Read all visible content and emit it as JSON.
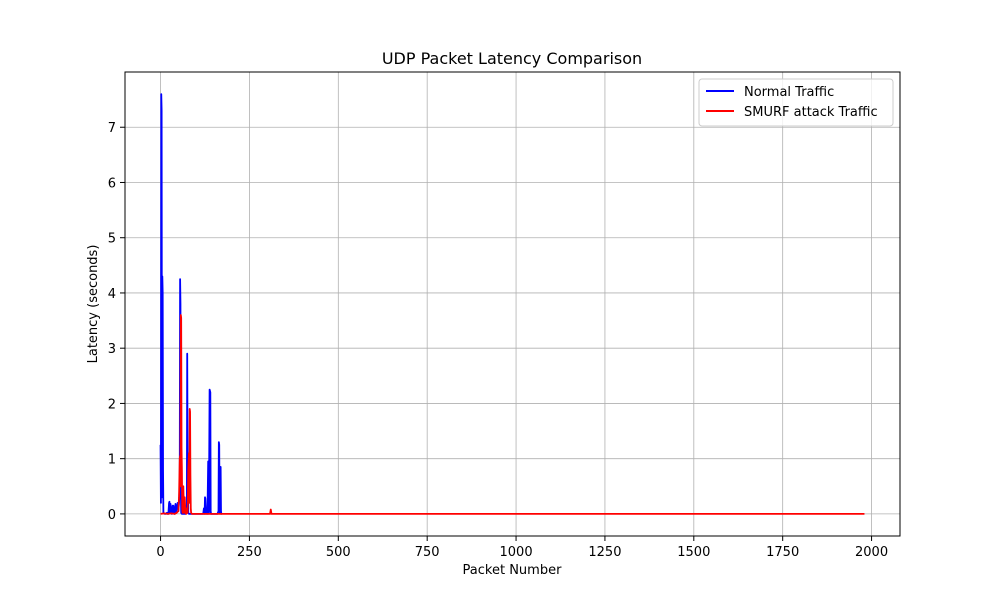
{
  "chart_data": {
    "type": "line",
    "title": "UDP Packet Latency Comparison",
    "xlabel": "Packet Number",
    "ylabel": "Latency (seconds)",
    "xlim": [
      -100,
      2080
    ],
    "ylim": [
      -0.4,
      8.0
    ],
    "xticks": [
      0,
      250,
      500,
      750,
      1000,
      1250,
      1500,
      1750,
      2000
    ],
    "yticks": [
      0,
      1,
      2,
      3,
      4,
      5,
      6,
      7
    ],
    "grid": true,
    "legend": "top-right",
    "series": [
      {
        "name": "Normal Traffic",
        "color": "#0000ff",
        "x": [
          0,
          1,
          2,
          3,
          4,
          5,
          6,
          7,
          8,
          9,
          10,
          12,
          15,
          18,
          20,
          22,
          24,
          25,
          26,
          27,
          28,
          30,
          32,
          34,
          35,
          36,
          38,
          40,
          42,
          44,
          45,
          46,
          48,
          50,
          52,
          54,
          55,
          56,
          57,
          58,
          60,
          62,
          65,
          70,
          74,
          75,
          76,
          78,
          80,
          85,
          90,
          100,
          110,
          120,
          122,
          124,
          125,
          126,
          128,
          130,
          132,
          134,
          135,
          136,
          138,
          140,
          141,
          142,
          143,
          144,
          146,
          150,
          155,
          160,
          163,
          164,
          165,
          166,
          167,
          168,
          169,
          170,
          171,
          172
        ],
        "y": [
          1.25,
          0.2,
          7.6,
          7.3,
          0.3,
          4.3,
          4.0,
          0.8,
          0.02,
          0.01,
          0.01,
          0.0,
          0.0,
          0.02,
          0.0,
          0.0,
          0.2,
          0.22,
          0.02,
          0.05,
          0.18,
          0.02,
          0.0,
          0.15,
          0.02,
          0.15,
          0.05,
          0.0,
          0.18,
          0.02,
          0.15,
          0.1,
          0.2,
          0.05,
          0.2,
          0.6,
          4.25,
          3.8,
          0.5,
          0.02,
          0.0,
          0.0,
          0.0,
          0.0,
          0.02,
          2.9,
          1.0,
          0.02,
          0.0,
          0.0,
          0.0,
          0.0,
          0.0,
          0.0,
          0.1,
          0.0,
          0.3,
          0.28,
          0.0,
          0.1,
          0.0,
          0.95,
          0.3,
          0.0,
          2.25,
          2.2,
          0.05,
          0.0,
          0.0,
          0.0,
          0.0,
          0.0,
          0.0,
          0.0,
          0.05,
          1.3,
          1.25,
          0.05,
          0.02,
          0.7,
          0.85,
          0.05,
          0.0,
          0.0
        ]
      },
      {
        "name": "SMURF attack Traffic",
        "color": "#ff0000",
        "x": [
          0,
          10,
          20,
          30,
          40,
          45,
          50,
          52,
          54,
          55,
          56,
          57,
          58,
          59,
          60,
          61,
          62,
          64,
          66,
          68,
          70,
          72,
          74,
          76,
          78,
          80,
          81,
          82,
          83,
          84,
          85,
          86,
          88,
          90,
          100,
          120,
          150,
          200,
          250,
          300,
          308,
          310,
          312,
          320,
          400,
          500,
          600,
          800,
          1000,
          1200,
          1400,
          1600,
          1800,
          1980
        ],
        "y": [
          0.0,
          0.01,
          0.0,
          0.01,
          0.0,
          0.02,
          0.05,
          0.3,
          1.0,
          1.05,
          0.5,
          3.6,
          3.55,
          1.2,
          0.8,
          0.1,
          0.02,
          0.5,
          0.02,
          0.3,
          0.02,
          0.0,
          0.1,
          0.02,
          0.8,
          1.1,
          0.2,
          1.9,
          1.85,
          0.7,
          0.1,
          0.02,
          0.0,
          0.0,
          0.0,
          0.0,
          0.0,
          0.0,
          0.0,
          0.0,
          0.0,
          0.08,
          0.0,
          0.0,
          0.0,
          0.0,
          0.0,
          0.0,
          0.0,
          0.0,
          0.0,
          0.0,
          0.0,
          0.0
        ]
      }
    ]
  }
}
